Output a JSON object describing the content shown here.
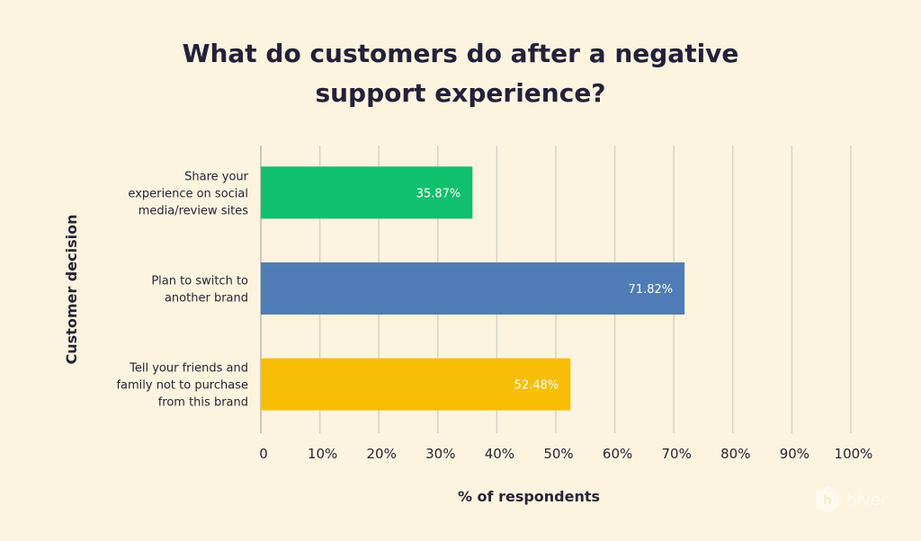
{
  "chart_data": {
    "type": "bar",
    "orientation": "horizontal",
    "title_lines": [
      "What do customers do after a negative",
      "support experience?"
    ],
    "xlabel": "% of respondents",
    "ylabel": "Customer decision",
    "xlim": [
      0,
      100
    ],
    "xticks": [
      "0",
      "10%",
      "20%",
      "30%",
      "40%",
      "50%",
      "60%",
      "70%",
      "80%",
      "90%",
      "100%"
    ],
    "grid": true,
    "categories": [
      [
        "Share your",
        "experience on social",
        "media/review sites"
      ],
      [
        "Plan to switch to",
        "another brand"
      ],
      [
        "Tell your friends and",
        "family not to purchase",
        "from this brand"
      ]
    ],
    "values": [
      35.87,
      71.82,
      52.48
    ],
    "value_labels": [
      "35.87%",
      "71.82%",
      "52.48%"
    ],
    "colors": [
      "#10c06c",
      "#4f7cb7",
      "#f7be05"
    ]
  },
  "brand": {
    "name": "hiver",
    "icon": "hiver-hexagon-logo-icon"
  }
}
